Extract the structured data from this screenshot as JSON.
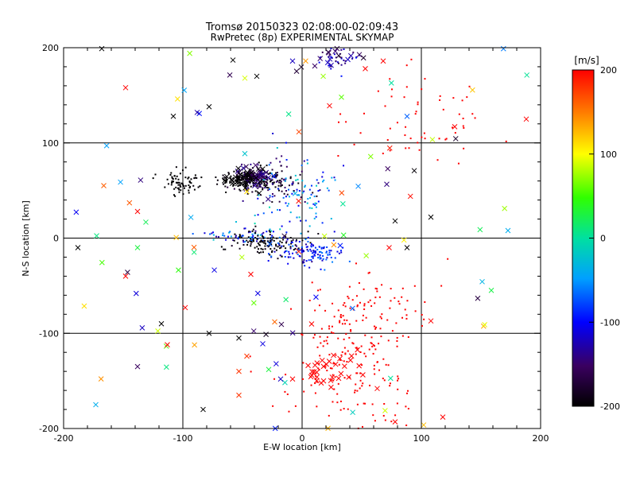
{
  "chart_data": {
    "type": "scatter",
    "title": "Tromsø 20150323 02:08:00-02:09:43",
    "subtitle": "RwPretec (8p) EXPERIMENTAL SKYMAP",
    "xlabel": "E-W location [km]",
    "ylabel": "N-S location [km]",
    "xlim": [
      -200,
      200
    ],
    "ylim": [
      -200,
      200
    ],
    "xticks": [
      "-200",
      "-100",
      "0",
      "100",
      "200"
    ],
    "yticks": [
      "-200",
      "-100",
      "0",
      "100",
      "200"
    ],
    "grid": true,
    "colorbar": {
      "label": "[m/s]",
      "range": [
        -200,
        200
      ],
      "ticks": [
        "-200",
        "-100",
        "0",
        "100",
        "200"
      ]
    },
    "clusters": [
      {
        "center": [
          -42,
          62
        ],
        "spread": [
          14,
          6
        ],
        "count": 180,
        "velocity": -200,
        "vspread": 10,
        "marker": "dot"
      },
      {
        "center": [
          -22,
          60
        ],
        "spread": [
          14,
          10
        ],
        "count": 90,
        "velocity": -160,
        "vspread": 30,
        "marker": "dot"
      },
      {
        "center": [
          -100,
          58
        ],
        "spread": [
          8,
          6
        ],
        "count": 70,
        "velocity": -200,
        "vspread": 5,
        "marker": "dot"
      },
      {
        "center": [
          -5,
          40
        ],
        "spread": [
          20,
          20
        ],
        "count": 100,
        "velocity": -60,
        "vspread": 60,
        "marker": "dot"
      },
      {
        "center": [
          -52,
          2
        ],
        "spread": [
          18,
          4
        ],
        "count": 60,
        "velocity": -80,
        "vspread": 60,
        "marker": "dot"
      },
      {
        "center": [
          -30,
          -5
        ],
        "spread": [
          14,
          6
        ],
        "count": 120,
        "velocity": -200,
        "vspread": 20,
        "marker": "dot"
      },
      {
        "center": [
          5,
          -15
        ],
        "spread": [
          15,
          7
        ],
        "count": 120,
        "velocity": -100,
        "vspread": 40,
        "marker": "dot"
      },
      {
        "center": [
          40,
          -130
        ],
        "spread": [
          30,
          35
        ],
        "count": 180,
        "velocity": 200,
        "vspread": 0,
        "marker": "dot"
      },
      {
        "center": [
          60,
          -70
        ],
        "spread": [
          25,
          20
        ],
        "count": 70,
        "velocity": 200,
        "vspread": 0,
        "marker": "dot"
      },
      {
        "center": [
          100,
          130
        ],
        "spread": [
          30,
          25
        ],
        "count": 60,
        "velocity": 200,
        "vspread": 0,
        "marker": "dot"
      },
      {
        "center": [
          30,
          190
        ],
        "spread": [
          10,
          8
        ],
        "count": 40,
        "velocity": -130,
        "vspread": 40,
        "marker": "dot"
      },
      {
        "center": [
          -40,
          65
        ],
        "spread": [
          6,
          5
        ],
        "count": 40,
        "velocity": -150,
        "vspread": 20,
        "marker": "cross"
      },
      {
        "center": [
          -50,
          60
        ],
        "spread": [
          10,
          5
        ],
        "count": 30,
        "velocity": -200,
        "vspread": 5,
        "marker": "cross"
      },
      {
        "center": [
          20,
          -140
        ],
        "spread": [
          15,
          10
        ],
        "count": 30,
        "velocity": 200,
        "vspread": 0,
        "marker": "cross"
      },
      {
        "center": [
          25,
          190
        ],
        "spread": [
          10,
          8
        ],
        "count": 15,
        "velocity": -150,
        "vspread": 40,
        "marker": "cross"
      },
      {
        "center": [
          0,
          0
        ],
        "spread": [
          110,
          130
        ],
        "count": 110,
        "velocity": 0,
        "vspread": 200,
        "marker": "cross"
      }
    ],
    "crosses": [
      [
        -168,
        199,
        -200
      ],
      [
        -148,
        158,
        200
      ],
      [
        -108,
        128,
        -200
      ],
      [
        -88,
        132,
        -130
      ],
      [
        -78,
        138,
        -200
      ],
      [
        -58,
        187,
        -200
      ],
      [
        -48,
        168,
        90
      ],
      [
        -38,
        170,
        -200
      ],
      [
        -8,
        186,
        -120
      ],
      [
        3,
        186,
        140
      ],
      [
        23,
        139,
        200
      ],
      [
        33,
        148,
        60
      ],
      [
        53,
        178,
        200
      ],
      [
        68,
        186,
        200
      ],
      [
        128,
        117,
        200
      ],
      [
        188,
        125,
        200
      ],
      [
        108,
        22,
        -200
      ],
      [
        78,
        18,
        -200
      ],
      [
        88,
        -10,
        -200
      ],
      [
        -188,
        -10,
        -200
      ],
      [
        -148,
        -40,
        200
      ],
      [
        -138,
        28,
        200
      ],
      [
        -138,
        -10,
        30
      ],
      [
        -98,
        -73,
        200
      ],
      [
        -118,
        -90,
        -200
      ],
      [
        -78,
        -100,
        -200
      ],
      [
        -53,
        -105,
        -200
      ],
      [
        -33,
        -111,
        -110
      ],
      [
        -23,
        -88,
        160
      ],
      [
        -28,
        -138,
        30
      ],
      [
        -53,
        -140,
        180
      ],
      [
        -53,
        -165,
        180
      ],
      [
        -83,
        -180,
        -200
      ],
      [
        -173,
        -175,
        -40
      ],
      [
        -138,
        -135,
        -150
      ],
      [
        -113,
        -112,
        200
      ],
      [
        -18,
        -148,
        -120
      ],
      [
        18,
        -150,
        200
      ],
      [
        63,
        -158,
        200
      ],
      [
        78,
        -193,
        200
      ],
      [
        118,
        -188,
        200
      ],
      [
        108,
        -87,
        200
      ],
      [
        -8,
        -148,
        200
      ],
      [
        73,
        -10,
        200
      ],
      [
        -43,
        -38,
        200
      ]
    ]
  }
}
